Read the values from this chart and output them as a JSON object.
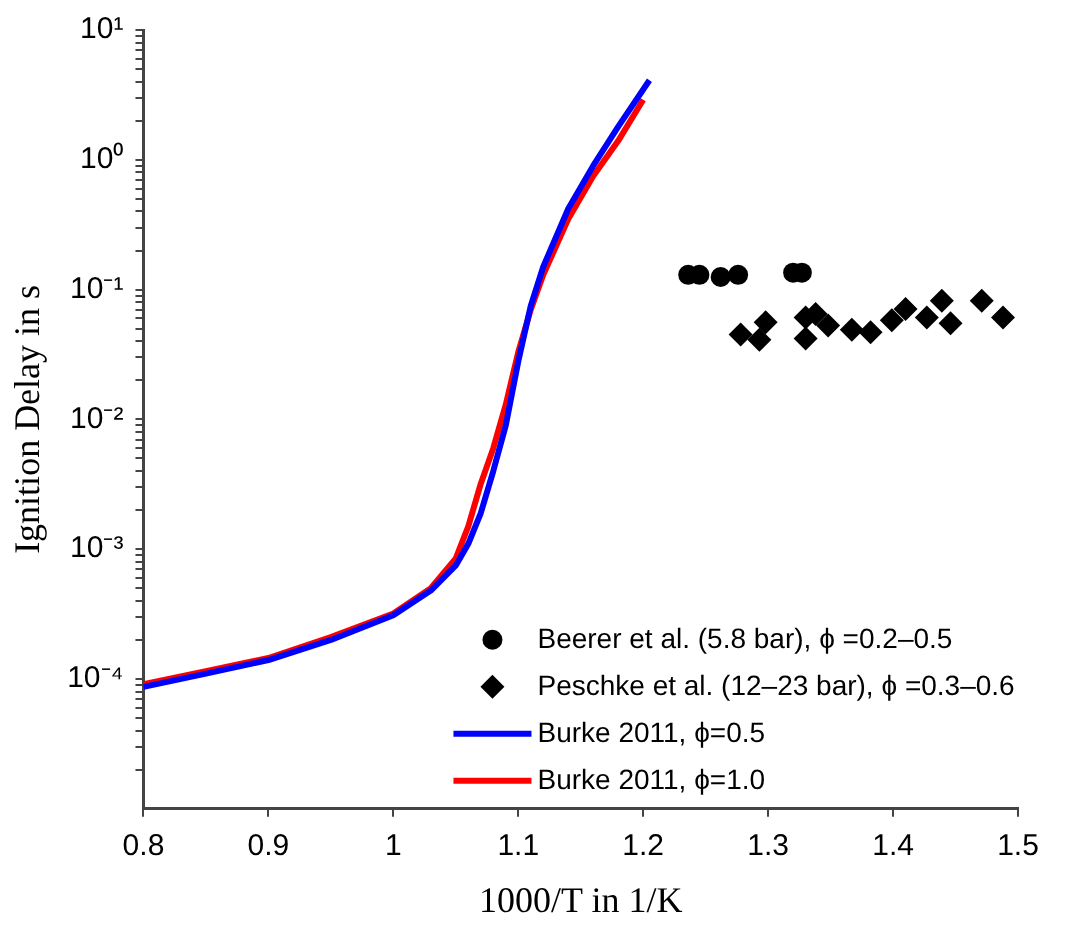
{
  "chart_data": {
    "type": "line",
    "xlabel": "1000/T in 1/K",
    "ylabel": "Ignition Delay in s",
    "log": "y",
    "grid": false,
    "legend": "bottom right",
    "xlim": [
      0.8,
      1.5
    ],
    "xticks": [
      0.8,
      0.9,
      1,
      1.1,
      1.2,
      1.3,
      1.4,
      1.5
    ],
    "ylim": [
      1e-05,
      10
    ],
    "yticks": [
      {
        "value": 0.0001,
        "label": "10⁻⁴"
      },
      {
        "value": 0.001,
        "label": "10⁻³"
      },
      {
        "value": 0.01,
        "label": "10⁻²"
      },
      {
        "value": 0.1,
        "label": "10⁻¹"
      },
      {
        "value": 1,
        "label": "10⁰"
      },
      {
        "value": 10,
        "label": "10¹"
      },
      {
        "value": 2e-05,
        "label": null
      },
      {
        "value": 3e-05,
        "label": null
      },
      {
        "value": 4e-05,
        "label": null
      },
      {
        "value": 5e-05,
        "label": null
      },
      {
        "value": 6e-05,
        "label": null
      },
      {
        "value": 7e-05,
        "label": null
      },
      {
        "value": 8e-05,
        "label": null
      },
      {
        "value": 9e-05,
        "label": null
      },
      {
        "value": 0.0002,
        "label": null
      },
      {
        "value": 0.0003,
        "label": null
      },
      {
        "value": 0.0004,
        "label": null
      },
      {
        "value": 0.0005,
        "label": null
      },
      {
        "value": 0.0006,
        "label": null
      },
      {
        "value": 0.0007,
        "label": null
      },
      {
        "value": 0.0008,
        "label": null
      },
      {
        "value": 0.0009,
        "label": null
      },
      {
        "value": 0.002,
        "label": null
      },
      {
        "value": 0.003,
        "label": null
      },
      {
        "value": 0.004,
        "label": null
      },
      {
        "value": 0.005,
        "label": null
      },
      {
        "value": 0.006,
        "label": null
      },
      {
        "value": 0.007,
        "label": null
      },
      {
        "value": 0.008,
        "label": null
      },
      {
        "value": 0.009,
        "label": null
      },
      {
        "value": 0.02,
        "label": null
      },
      {
        "value": 0.03,
        "label": null
      },
      {
        "value": 0.04,
        "label": null
      },
      {
        "value": 0.05,
        "label": null
      },
      {
        "value": 0.06,
        "label": null
      },
      {
        "value": 0.07,
        "label": null
      },
      {
        "value": 0.08,
        "label": null
      },
      {
        "value": 0.09,
        "label": null
      },
      {
        "value": 0.2,
        "label": null
      },
      {
        "value": 0.3,
        "label": null
      },
      {
        "value": 0.4,
        "label": null
      },
      {
        "value": 0.5,
        "label": null
      },
      {
        "value": 0.6,
        "label": null
      },
      {
        "value": 0.7,
        "label": null
      },
      {
        "value": 0.8,
        "label": null
      },
      {
        "value": 0.9,
        "label": null
      },
      {
        "value": 2,
        "label": null
      },
      {
        "value": 3,
        "label": null
      },
      {
        "value": 4,
        "label": null
      },
      {
        "value": 5,
        "label": null
      },
      {
        "value": 6,
        "label": null
      },
      {
        "value": 7,
        "label": null
      },
      {
        "value": 8,
        "label": null
      },
      {
        "value": 9,
        "label": null
      }
    ],
    "series": [
      {
        "name": "Beerer et al. (5.8 bar), ϕ =0.2–0.5",
        "type": "scatter",
        "marker": "circle",
        "color": "#000000",
        "x": [
          1.236,
          1.245,
          1.262,
          1.276,
          1.32,
          1.327
        ],
        "values": [
          0.13,
          0.13,
          0.125,
          0.13,
          0.135,
          0.135
        ]
      },
      {
        "name": "Peschke et al. (12–23 bar), ϕ =0.3–0.6",
        "type": "scatter",
        "marker": "diamond",
        "color": "#000000",
        "x": [
          1.278,
          1.293,
          1.298,
          1.33,
          1.33,
          1.338,
          1.348,
          1.367,
          1.382,
          1.399,
          1.41,
          1.427,
          1.439,
          1.446,
          1.471,
          1.488
        ],
        "values": [
          0.045,
          0.041,
          0.056,
          0.042,
          0.061,
          0.065,
          0.053,
          0.049,
          0.047,
          0.058,
          0.071,
          0.061,
          0.082,
          0.055,
          0.082,
          0.061
        ]
      },
      {
        "name": "Burke 2011, ϕ=0.5",
        "type": "line",
        "marker": "none",
        "line_style": "solid",
        "color": "#0000ff",
        "x": [
          0.8,
          0.85,
          0.9,
          0.95,
          1.0,
          1.03,
          1.05,
          1.06,
          1.07,
          1.08,
          1.09,
          1.1,
          1.11,
          1.12,
          1.14,
          1.16,
          1.18,
          1.205
        ],
        "values": [
          8.7e-05,
          0.00011,
          0.00014,
          0.0002,
          0.00031,
          0.00048,
          0.00075,
          0.0011,
          0.0019,
          0.004,
          0.009,
          0.028,
          0.075,
          0.15,
          0.42,
          0.9,
          1.8,
          4.1
        ]
      },
      {
        "name": "Burke 2011, ϕ=1.0",
        "type": "line",
        "marker": "none",
        "line_style": "solid",
        "color": "#ff0000",
        "x": [
          0.8,
          0.85,
          0.9,
          0.95,
          1.0,
          1.03,
          1.05,
          1.06,
          1.07,
          1.08,
          1.09,
          1.1,
          1.11,
          1.12,
          1.14,
          1.16,
          1.18,
          1.2
        ],
        "values": [
          9.1e-05,
          0.000115,
          0.000145,
          0.00021,
          0.00032,
          0.0005,
          0.00085,
          0.0015,
          0.0032,
          0.006,
          0.013,
          0.033,
          0.07,
          0.13,
          0.35,
          0.75,
          1.4,
          2.9
        ]
      }
    ]
  }
}
